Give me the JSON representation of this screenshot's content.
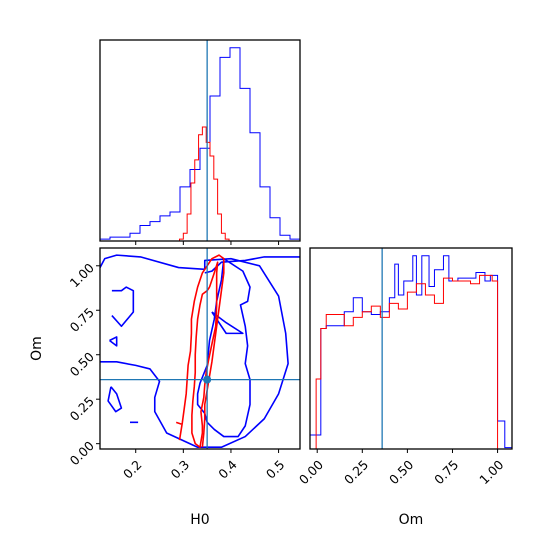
{
  "colors": {
    "series_blue": "#0000ff",
    "series_red": "#ff0000",
    "truth": "#1f77b4"
  },
  "chart_data": [
    {
      "type": "histogram",
      "panel": "H0 marginal",
      "xlim": [
        0.125,
        0.545
      ],
      "x_tick_values": [
        0.2,
        0.3,
        0.4,
        0.5
      ],
      "truth": 0.35,
      "series": [
        {
          "color": "#0000ff",
          "bin_edges": [
            0.125,
            0.146,
            0.167,
            0.188,
            0.209,
            0.23,
            0.251,
            0.272,
            0.293,
            0.314,
            0.335,
            0.356,
            0.377,
            0.398,
            0.419,
            0.44,
            0.461,
            0.482,
            0.503,
            0.524,
            0.545
          ],
          "values": [
            1,
            2,
            2,
            4,
            8,
            10,
            13,
            15,
            28,
            37,
            48,
            75,
            95,
            100,
            79,
            56,
            28,
            12,
            3,
            1
          ]
        },
        {
          "color": "#ff0000",
          "bin_edges": [
            0.292,
            0.3,
            0.308,
            0.316,
            0.324,
            0.332,
            0.34,
            0.348,
            0.356,
            0.364,
            0.372,
            0.38,
            0.388,
            0.396
          ],
          "values": [
            1,
            4,
            14,
            30,
            42,
            55,
            59,
            51,
            44,
            32,
            14,
            4,
            1
          ]
        }
      ]
    },
    {
      "type": "contour",
      "panel": "H0 vs Om",
      "xlabel": "H0",
      "ylabel": "Om",
      "xlim": [
        0.125,
        0.545
      ],
      "ylim": [
        -0.03,
        1.1
      ],
      "x_ticks": [
        "0.2",
        "0.3",
        "0.4",
        "0.5"
      ],
      "x_tick_values": [
        0.2,
        0.3,
        0.4,
        0.5
      ],
      "y_ticks": [
        "0.00",
        "0.25",
        "0.50",
        "0.75",
        "1.00"
      ],
      "y_tick_values": [
        0.0,
        0.25,
        0.5,
        0.75,
        1.0
      ],
      "truth": [
        0.35,
        0.36
      ],
      "contours": [
        {
          "color": "#0000ff",
          "points": [
            [
              0.125,
              0.46
            ],
            [
              0.16,
              0.46
            ],
            [
              0.2,
              0.44
            ],
            [
              0.23,
              0.42
            ],
            [
              0.25,
              0.35
            ],
            [
              0.24,
              0.26
            ],
            [
              0.24,
              0.18
            ],
            [
              0.265,
              0.06
            ],
            [
              0.33,
              -0.02
            ],
            [
              0.38,
              -0.02
            ],
            [
              0.43,
              0.04
            ],
            [
              0.47,
              0.14
            ],
            [
              0.5,
              0.28
            ],
            [
              0.52,
              0.45
            ],
            [
              0.515,
              0.62
            ],
            [
              0.5,
              0.83
            ],
            [
              0.46,
              1.0
            ],
            [
              0.4,
              1.04
            ],
            [
              0.345,
              1.03
            ],
            [
              0.345,
              0.98
            ],
            [
              0.29,
              0.99
            ],
            [
              0.21,
              1.05
            ],
            [
              0.16,
              1.06
            ],
            [
              0.135,
              1.04
            ],
            [
              0.125,
              0.99
            ]
          ]
        },
        {
          "color": "#0000ff",
          "points": [
            [
              0.345,
              0.96
            ],
            [
              0.36,
              0.97
            ],
            [
              0.38,
              1.02
            ],
            [
              0.43,
              1.03
            ],
            [
              0.47,
              1.05
            ],
            [
              0.545,
              1.05
            ]
          ]
        },
        {
          "color": "#0000ff",
          "points": [
            [
              0.385,
              1.04
            ],
            [
              0.425,
              0.97
            ],
            [
              0.44,
              0.88
            ],
            [
              0.435,
              0.8
            ],
            [
              0.42,
              0.78
            ],
            [
              0.43,
              0.66
            ],
            [
              0.435,
              0.55
            ],
            [
              0.43,
              0.45
            ],
            [
              0.44,
              0.36
            ],
            [
              0.44,
              0.22
            ],
            [
              0.43,
              0.1
            ],
            [
              0.415,
              0.04
            ],
            [
              0.385,
              0.04
            ],
            [
              0.365,
              0.08
            ],
            [
              0.35,
              0.12
            ],
            [
              0.345,
              0.17
            ],
            [
              0.33,
              0.22
            ],
            [
              0.33,
              0.28
            ],
            [
              0.335,
              0.34
            ],
            [
              0.35,
              0.44
            ],
            [
              0.355,
              0.58
            ],
            [
              0.365,
              0.7
            ],
            [
              0.37,
              0.8
            ],
            [
              0.38,
              0.92
            ],
            [
              0.385,
              1.04
            ]
          ]
        },
        {
          "color": "#0000ff",
          "points": [
            [
              0.36,
              0.74
            ],
            [
              0.39,
              0.68
            ],
            [
              0.425,
              0.62
            ],
            [
              0.39,
              0.62
            ],
            [
              0.36,
              0.74
            ]
          ]
        },
        {
          "color": "#0000ff",
          "points": [
            [
              0.15,
              0.86
            ],
            [
              0.17,
              0.86
            ],
            [
              0.18,
              0.88
            ],
            [
              0.195,
              0.86
            ],
            [
              0.195,
              0.74
            ],
            [
              0.17,
              0.66
            ],
            [
              0.15,
              0.72
            ]
          ]
        },
        {
          "color": "#0000ff",
          "points": [
            [
              0.145,
              0.58
            ],
            [
              0.16,
              0.6
            ],
            [
              0.16,
              0.55
            ],
            [
              0.145,
              0.58
            ]
          ]
        },
        {
          "color": "#0000ff",
          "points": [
            [
              0.148,
              0.32
            ],
            [
              0.16,
              0.28
            ],
            [
              0.17,
              0.2
            ],
            [
              0.158,
              0.18
            ],
            [
              0.142,
              0.24
            ],
            [
              0.148,
              0.32
            ]
          ]
        },
        {
          "color": "#0000ff",
          "points": [
            [
              0.188,
              0.12
            ],
            [
              0.205,
              0.12
            ]
          ]
        },
        {
          "color": "#ff0000",
          "points": [
            [
              0.355,
              0.88
            ],
            [
              0.365,
              0.96
            ],
            [
              0.372,
              1.02
            ],
            [
              0.37,
              0.96
            ],
            [
              0.37,
              0.88
            ],
            [
              0.37,
              0.78
            ],
            [
              0.368,
              0.66
            ],
            [
              0.36,
              0.56
            ],
            [
              0.353,
              0.47
            ],
            [
              0.348,
              0.4
            ],
            [
              0.345,
              0.33
            ],
            [
              0.343,
              0.26
            ],
            [
              0.337,
              0.18
            ],
            [
              0.34,
              0.1
            ],
            [
              0.34,
              0.06
            ],
            [
              0.335,
              -0.02
            ],
            [
              0.325,
              0.0
            ],
            [
              0.318,
              0.06
            ],
            [
              0.318,
              0.16
            ],
            [
              0.32,
              0.24
            ],
            [
              0.323,
              0.32
            ],
            [
              0.325,
              0.4
            ],
            [
              0.325,
              0.5
            ],
            [
              0.327,
              0.6
            ],
            [
              0.33,
              0.7
            ],
            [
              0.335,
              0.78
            ],
            [
              0.34,
              0.84
            ],
            [
              0.35,
              0.86
            ],
            [
              0.355,
              0.88
            ]
          ]
        },
        {
          "color": "#ff0000",
          "points": [
            [
              0.292,
              0.02
            ],
            [
              0.298,
              0.12
            ],
            [
              0.302,
              0.2
            ],
            [
              0.306,
              0.28
            ],
            [
              0.308,
              0.36
            ],
            [
              0.31,
              0.44
            ],
            [
              0.315,
              0.52
            ],
            [
              0.317,
              0.62
            ],
            [
              0.317,
              0.7
            ],
            [
              0.323,
              0.8
            ],
            [
              0.33,
              0.88
            ],
            [
              0.34,
              0.96
            ],
            [
              0.36,
              1.04
            ],
            [
              0.375,
              1.06
            ],
            [
              0.385,
              1.04
            ],
            [
              0.385,
              0.96
            ],
            [
              0.38,
              0.86
            ],
            [
              0.375,
              0.76
            ],
            [
              0.37,
              0.66
            ],
            [
              0.365,
              0.56
            ],
            [
              0.36,
              0.46
            ],
            [
              0.355,
              0.38
            ],
            [
              0.35,
              0.3
            ],
            [
              0.345,
              0.22
            ],
            [
              0.345,
              0.14
            ],
            [
              0.343,
              0.06
            ],
            [
              0.34,
              -0.02
            ]
          ]
        },
        {
          "color": "#ff0000",
          "points": [
            [
              0.285,
              0.12
            ],
            [
              0.296,
              0.11
            ]
          ]
        }
      ]
    },
    {
      "type": "histogram",
      "panel": "Om marginal",
      "xlabel": "Om",
      "xlim": [
        -0.04,
        1.08
      ],
      "x_ticks": [
        "0.00",
        "0.25",
        "0.50",
        "0.75",
        "1.00"
      ],
      "x_tick_values": [
        0.0,
        0.25,
        0.5,
        0.75,
        1.0
      ],
      "truth": 0.36,
      "series": [
        {
          "color": "#0000ff",
          "bin_edges": [
            -0.04,
            -0.006,
            0.02,
            0.05,
            0.1,
            0.15,
            0.2,
            0.25,
            0.3,
            0.35,
            0.4,
            0.43,
            0.45,
            0.48,
            0.53,
            0.55,
            0.58,
            0.62,
            0.65,
            0.7,
            0.73,
            0.78,
            0.83,
            0.88,
            0.93,
            0.96,
            1.0,
            1.04,
            1.08
          ],
          "values": [
            5,
            5,
            43,
            44,
            44,
            49,
            54,
            49,
            48,
            49,
            54,
            66,
            55,
            60,
            69,
            55,
            69,
            58,
            64,
            69,
            60,
            61,
            61,
            63,
            60,
            62,
            10,
            0.5
          ]
        },
        {
          "color": "#ff0000",
          "bin_edges": [
            -0.006,
            0.02,
            0.05,
            0.1,
            0.15,
            0.2,
            0.25,
            0.3,
            0.35,
            0.4,
            0.45,
            0.5,
            0.55,
            0.6,
            0.65,
            0.7,
            0.75,
            0.8,
            0.85,
            0.9,
            0.94,
            0.97,
            1.0
          ],
          "values": [
            25,
            43,
            48,
            48,
            44,
            47,
            49,
            51,
            47,
            52,
            50,
            56,
            59,
            55,
            52,
            61,
            60,
            60,
            59,
            62,
            62,
            60
          ]
        }
      ]
    }
  ]
}
